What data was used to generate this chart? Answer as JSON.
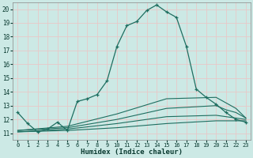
{
  "xlabel": "Humidex (Indice chaleur)",
  "background_color": "#cce9e5",
  "grid_color": "#e8c8c8",
  "line_color": "#1e6e60",
  "xlim": [
    -0.5,
    23.5
  ],
  "ylim": [
    10.5,
    20.5
  ],
  "xticks": [
    0,
    1,
    2,
    3,
    4,
    5,
    6,
    7,
    8,
    9,
    10,
    11,
    12,
    13,
    14,
    15,
    16,
    17,
    18,
    19,
    20,
    21,
    22,
    23
  ],
  "yticks": [
    11,
    12,
    13,
    14,
    15,
    16,
    17,
    18,
    19,
    20
  ],
  "main_x": [
    0,
    1,
    2,
    3,
    4,
    5,
    6,
    7,
    8,
    9,
    10,
    11,
    12,
    13,
    14,
    15,
    16,
    17,
    18,
    19,
    20,
    21,
    22,
    23
  ],
  "main_y": [
    12.5,
    11.7,
    11.1,
    11.3,
    11.8,
    11.2,
    13.3,
    13.5,
    13.8,
    14.8,
    17.3,
    18.8,
    19.1,
    19.9,
    20.3,
    19.8,
    19.4,
    17.3,
    14.2,
    13.6,
    13.1,
    12.5,
    12.0,
    11.8
  ],
  "flat_lines": [
    {
      "x": [
        0,
        5,
        10,
        15,
        20,
        21,
        22,
        23
      ],
      "y": [
        11.1,
        11.2,
        11.4,
        11.7,
        11.9,
        11.9,
        11.9,
        11.9
      ]
    },
    {
      "x": [
        0,
        5,
        10,
        15,
        20,
        21,
        22,
        23
      ],
      "y": [
        11.1,
        11.3,
        11.7,
        12.2,
        12.3,
        12.2,
        12.1,
        12.0
      ]
    },
    {
      "x": [
        0,
        5,
        10,
        15,
        20,
        21,
        22,
        23
      ],
      "y": [
        11.2,
        11.4,
        12.0,
        12.8,
        13.0,
        12.7,
        12.5,
        12.1
      ]
    },
    {
      "x": [
        0,
        5,
        10,
        15,
        20,
        21,
        22,
        23
      ],
      "y": [
        11.2,
        11.5,
        12.4,
        13.5,
        13.6,
        13.2,
        12.8,
        12.1
      ]
    }
  ]
}
